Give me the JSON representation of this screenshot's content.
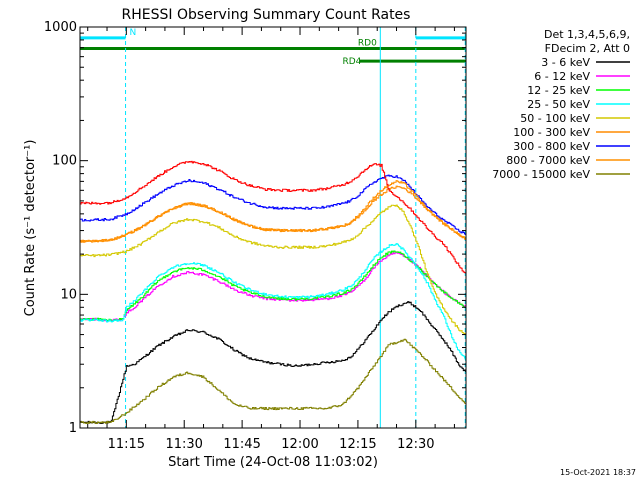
{
  "chart_data": {
    "type": "line",
    "title": "RHESSI Observing Summary Count Rates",
    "xlabel": "Start Time (24-Oct-08 11:03:02)",
    "ylabel": "Count Rate (s⁻¹ detector⁻¹)",
    "yscale": "log",
    "ylim": [
      1,
      1000
    ],
    "xlim_minutes": [
      0,
      100
    ],
    "x_ticks": [
      {
        "label": "11:15",
        "minute": 12
      },
      {
        "label": "11:30",
        "minute": 27
      },
      {
        "label": "11:45",
        "minute": 42
      },
      {
        "label": "12:00",
        "minute": 57
      },
      {
        "label": "12:15",
        "minute": 72
      },
      {
        "label": "12:30",
        "minute": 87
      }
    ],
    "y_ticks": [
      {
        "label": "1",
        "value": 1
      },
      {
        "label": "10",
        "value": 10
      },
      {
        "label": "100",
        "value": 100
      },
      {
        "label": "1000",
        "value": 1000
      }
    ],
    "legend": {
      "position": "right",
      "header": [
        "Det 1,3,4,5,6,9,",
        "FDecim 2, Att 0"
      ]
    },
    "series": [
      {
        "name": "3 - 6 keV",
        "color": "#000000",
        "dx": 0.3,
        "jitter": 0.02,
        "x": [
          0,
          4,
          8,
          12,
          14,
          16,
          20,
          24,
          28,
          32,
          36,
          40,
          44,
          48,
          52,
          56,
          60,
          64,
          68,
          70,
          72,
          74,
          76,
          78,
          80,
          82,
          84,
          85,
          86,
          88,
          90,
          92,
          94,
          96,
          98,
          100
        ],
        "y": [
          1.1,
          1.1,
          1.1,
          2.9,
          3.0,
          3.3,
          4.1,
          4.8,
          5.4,
          5.2,
          4.6,
          3.8,
          3.3,
          3.1,
          3.0,
          2.9,
          3.0,
          3.1,
          3.2,
          3.4,
          3.9,
          4.6,
          5.4,
          6.5,
          7.4,
          8.1,
          8.6,
          8.7,
          8.4,
          7.6,
          6.4,
          5.4,
          4.6,
          3.8,
          3.0,
          2.6
        ]
      },
      {
        "name": "6 - 12 keV",
        "color": "#ff00ff",
        "dx": 0.3,
        "jitter": 0.02,
        "x": [
          0,
          4,
          8,
          11,
          12,
          14,
          16,
          20,
          24,
          28,
          32,
          36,
          40,
          44,
          48,
          52,
          56,
          60,
          64,
          68,
          70,
          72,
          74,
          76,
          78,
          80,
          82,
          84,
          86,
          88,
          90,
          92,
          94,
          96,
          98,
          100
        ],
        "y": [
          6.5,
          6.5,
          6.4,
          6.5,
          7.3,
          8.0,
          9.0,
          11.5,
          13.6,
          14.6,
          14.0,
          12.5,
          10.8,
          9.8,
          9.3,
          9.1,
          9.0,
          9.1,
          9.3,
          9.8,
          10.3,
          11.5,
          13.2,
          15.8,
          18.0,
          19.5,
          20.5,
          19.0,
          17.5,
          15.5,
          13.5,
          11.8,
          10.5,
          9.5,
          8.6,
          8.0
        ]
      },
      {
        "name": "12 - 25 keV",
        "color": "#00ff00",
        "dx": 0.3,
        "jitter": 0.02,
        "x": [
          0,
          4,
          8,
          11,
          12,
          14,
          16,
          20,
          24,
          28,
          32,
          36,
          40,
          44,
          48,
          52,
          56,
          60,
          64,
          68,
          70,
          72,
          74,
          76,
          78,
          80,
          82,
          84,
          86,
          88,
          90,
          92,
          94,
          96,
          98,
          100
        ],
        "y": [
          6.5,
          6.5,
          6.4,
          6.5,
          7.6,
          8.5,
          9.5,
          12.5,
          14.8,
          15.8,
          15.2,
          13.5,
          11.5,
          10.3,
          9.6,
          9.3,
          9.2,
          9.3,
          9.6,
          10.2,
          10.8,
          12.0,
          14.0,
          16.5,
          19.0,
          20.5,
          21.0,
          19.5,
          17.5,
          15.5,
          13.5,
          11.8,
          10.5,
          9.5,
          8.6,
          8.0
        ]
      },
      {
        "name": "25 - 50 keV",
        "color": "#00ffff",
        "dx": 0.3,
        "jitter": 0.02,
        "x": [
          0,
          4,
          8,
          11,
          12,
          14,
          16,
          20,
          24,
          28,
          32,
          36,
          40,
          44,
          48,
          52,
          56,
          60,
          64,
          68,
          70,
          72,
          74,
          76,
          78,
          80,
          82,
          84,
          86,
          88,
          90,
          92,
          94,
          96,
          98,
          100
        ],
        "y": [
          6.4,
          6.4,
          6.3,
          6.4,
          8.0,
          9.0,
          10.2,
          13.5,
          16.0,
          17.2,
          16.5,
          14.5,
          12.2,
          10.8,
          10.0,
          9.6,
          9.5,
          9.6,
          10.0,
          10.8,
          11.5,
          13.0,
          15.5,
          18.5,
          21.0,
          23.0,
          24.0,
          21.0,
          18.0,
          15.0,
          12.0,
          9.0,
          7.0,
          5.0,
          3.8,
          3.2
        ]
      },
      {
        "name": "50 - 100 keV",
        "color": "#d4c800",
        "dx": 0.3,
        "jitter": 0.02,
        "x": [
          0,
          4,
          8,
          12,
          16,
          20,
          24,
          28,
          32,
          36,
          40,
          44,
          48,
          52,
          56,
          60,
          64,
          68,
          70,
          72,
          74,
          76,
          78,
          80,
          82,
          84,
          86,
          88,
          90,
          92,
          94,
          96,
          98,
          100
        ],
        "y": [
          19.5,
          19.5,
          19.8,
          21.0,
          24.0,
          29.0,
          34.0,
          36.5,
          35.0,
          31.5,
          27.0,
          24.5,
          23.0,
          22.5,
          22.5,
          22.5,
          23.0,
          24.5,
          25.5,
          28.0,
          32.0,
          36.0,
          41.0,
          45.0,
          47.0,
          40.0,
          30.0,
          21.0,
          14.0,
          10.0,
          8.0,
          6.5,
          5.5,
          5.0
        ]
      },
      {
        "name": "100 - 300 keV",
        "color": "#ff8c00",
        "dx": 0.3,
        "jitter": 0.02,
        "x": [
          0,
          4,
          8,
          12,
          16,
          20,
          24,
          28,
          32,
          36,
          40,
          44,
          48,
          52,
          56,
          60,
          64,
          68,
          70,
          72,
          74,
          76,
          78,
          80,
          82,
          84,
          86,
          88,
          90,
          92,
          94,
          96,
          98,
          100
        ],
        "y": [
          25.0,
          25.0,
          25.5,
          28.0,
          32.0,
          38.0,
          44.0,
          48.0,
          46.0,
          41.5,
          36.0,
          32.5,
          30.5,
          30.0,
          30.0,
          30.0,
          31.0,
          32.5,
          34.0,
          38.0,
          43.0,
          50.0,
          56.0,
          61.0,
          64.0,
          62.0,
          56.0,
          49.0,
          43.0,
          38.0,
          34.0,
          31.0,
          28.0,
          26.0
        ]
      },
      {
        "name": "300 - 800 keV",
        "color": "#0000ff",
        "dx": 0.3,
        "jitter": 0.02,
        "x": [
          0,
          4,
          8,
          12,
          16,
          20,
          24,
          28,
          32,
          36,
          40,
          44,
          48,
          52,
          56,
          60,
          64,
          68,
          70,
          72,
          74,
          76,
          78,
          80,
          82,
          84,
          86,
          88,
          90,
          92,
          94,
          96,
          98,
          100
        ],
        "y": [
          36.0,
          36.0,
          36.5,
          40.0,
          47.0,
          56.0,
          65.0,
          71.0,
          68.0,
          61.0,
          53.0,
          48.0,
          45.0,
          44.0,
          44.0,
          44.0,
          45.0,
          48.0,
          50.0,
          55.0,
          62.0,
          69.0,
          74.0,
          77.0,
          76.0,
          70.0,
          61.0,
          52.0,
          45.0,
          40.0,
          36.0,
          33.0,
          30.0,
          28.0
        ]
      },
      {
        "name": "800 - 7000 keV",
        "color": "#ff9000",
        "dx": 0.3,
        "jitter": 0.02,
        "x": [
          0,
          4,
          8,
          12,
          16,
          20,
          24,
          28,
          32,
          36,
          40,
          44,
          48,
          52,
          56,
          60,
          64,
          68,
          70,
          72,
          74,
          76,
          78,
          80,
          82,
          84,
          86,
          88,
          90,
          92,
          94,
          96,
          98,
          100
        ],
        "y": [
          25.0,
          25.0,
          25.5,
          28.0,
          32.0,
          38.0,
          44.0,
          48.0,
          46.0,
          41.5,
          36.0,
          32.5,
          30.5,
          30.0,
          30.0,
          30.0,
          31.0,
          32.5,
          34.5,
          39.0,
          45.0,
          53.0,
          60.0,
          66.0,
          70.0,
          67.0,
          59.0,
          50.0,
          43.0,
          38.0,
          34.0,
          31.0,
          28.0,
          26.0
        ]
      },
      {
        "name": "7000 - 15000 keV",
        "color": "#808000",
        "dx": 0.3,
        "jitter": 0.02,
        "x": [
          0,
          4,
          8,
          12,
          16,
          20,
          24,
          28,
          32,
          36,
          40,
          44,
          48,
          52,
          56,
          60,
          64,
          68,
          72,
          76,
          80,
          84,
          88,
          92,
          96,
          100
        ],
        "y": [
          1.1,
          1.1,
          1.1,
          1.3,
          1.6,
          2.0,
          2.4,
          2.6,
          2.4,
          1.9,
          1.5,
          1.4,
          1.4,
          1.4,
          1.4,
          1.4,
          1.4,
          1.5,
          2.0,
          2.9,
          4.2,
          4.6,
          3.6,
          2.7,
          2.0,
          1.5
        ]
      },
      {
        "name": "",
        "color": "#ff0000",
        "dx": 0.3,
        "jitter": 0.02,
        "x": [
          0,
          4,
          8,
          12,
          16,
          20,
          24,
          28,
          32,
          36,
          40,
          44,
          48,
          52,
          56,
          60,
          64,
          68,
          70,
          72,
          74,
          76,
          78,
          80,
          82,
          84,
          86,
          88,
          90,
          92,
          94,
          96,
          98,
          100
        ],
        "y": [
          48.0,
          48.0,
          48.5,
          53.0,
          63.0,
          76.0,
          90.0,
          99.0,
          95.0,
          84.0,
          72.0,
          65.0,
          61.0,
          60.0,
          60.0,
          60.0,
          62.0,
          66.0,
          70.0,
          77.0,
          87.0,
          94.0,
          92.0,
          60.0,
          54.0,
          48.0,
          42.0,
          36.0,
          31.0,
          27.0,
          24.0,
          20.0,
          16.5,
          14.0
        ]
      }
    ],
    "bars": [
      {
        "label": "N",
        "color": "#00e5ff",
        "y": 830,
        "segments": [
          [
            0,
            11.8
          ],
          [
            87.0,
            100
          ]
        ]
      },
      {
        "label": "RD0",
        "color": "#008000",
        "y": 690,
        "segments": [
          [
            0,
            100
          ]
        ]
      },
      {
        "label": "RD4",
        "color": "#008000",
        "y": 555,
        "segments": [
          [
            72.5,
            100
          ]
        ]
      }
    ],
    "vlines": [
      {
        "x": 0.0,
        "style": "solid",
        "color": "#00e5ff"
      },
      {
        "x": 11.8,
        "style": "dashed",
        "color": "#00e5ff"
      },
      {
        "x": 77.8,
        "style": "solid",
        "color": "#00e5ff"
      },
      {
        "x": 87.0,
        "style": "dashed",
        "color": "#00e5ff"
      },
      {
        "x": 99.8,
        "style": "dashed",
        "color": "#00e5ff"
      }
    ],
    "footer_date": "15-Oct-2021 18:37"
  }
}
